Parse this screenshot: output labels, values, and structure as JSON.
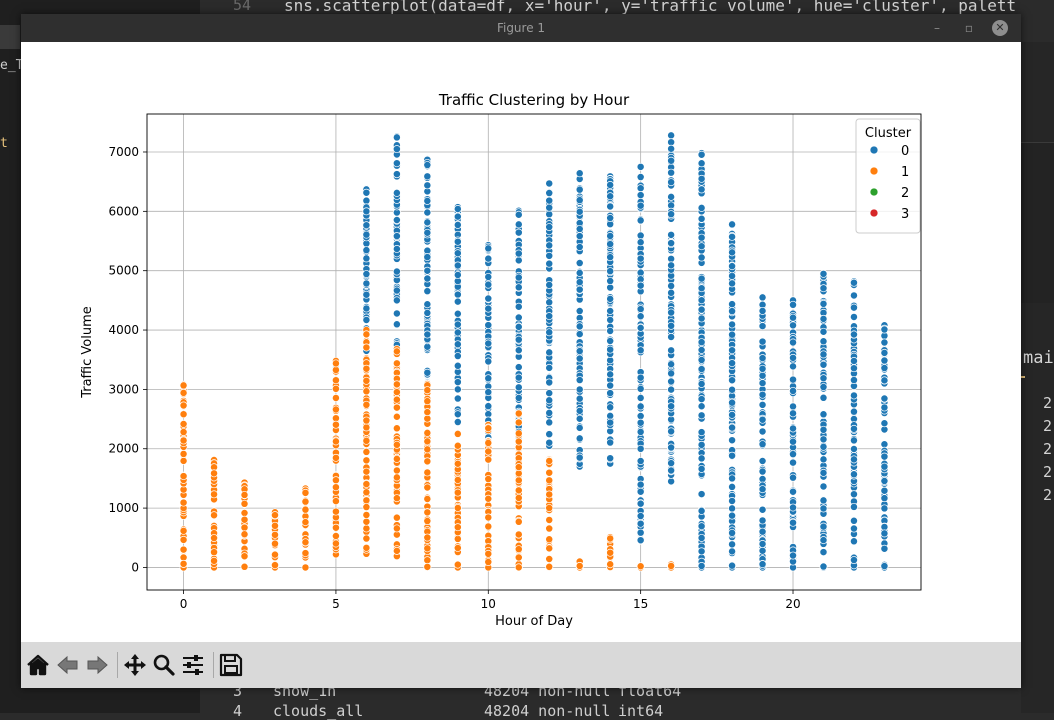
{
  "background": {
    "line_number": "54",
    "code_line": "sns.scatterplot(data=df, x='hour', y='traffic_volume', hue='cluster', palett",
    "sidebar_text_1": "e_T",
    "sidebar_text_2": "t",
    "right_fragment": "mai",
    "right_rows": [
      "2",
      "2",
      "2",
      "2",
      "2"
    ],
    "bottom_rows": [
      {
        "idx": "3",
        "col": "snow_1h",
        "count": "48204 non-null",
        "dtype": "float64"
      },
      {
        "idx": "4",
        "col": "clouds_all",
        "count": "48204 non-null",
        "dtype": "int64"
      }
    ]
  },
  "window": {
    "title": "Figure 1",
    "minimize": "–",
    "maximize": "▫",
    "close": "✕"
  },
  "toolbar": {
    "home": "home-icon",
    "back": "back-arrow-icon",
    "forward": "forward-arrow-icon",
    "pan": "move-icon",
    "zoom": "zoom-icon",
    "configure": "sliders-icon",
    "save": "save-icon"
  },
  "colors": {
    "cluster_0": "#1f77b4",
    "cluster_1": "#ff7f0e",
    "cluster_2": "#2ca02c",
    "cluster_3": "#d62728",
    "grid": "#b0b0b0"
  },
  "chart_data": {
    "type": "scatter",
    "title": "Traffic Clustering by Hour",
    "xlabel": "Hour of Day",
    "ylabel": "Traffic Volume",
    "xlim": [
      -1.2,
      24.2
    ],
    "ylim": [
      -380,
      7640
    ],
    "xticks": [
      0,
      5,
      10,
      15,
      20
    ],
    "yticks": [
      0,
      1000,
      2000,
      3000,
      4000,
      5000,
      6000,
      7000
    ],
    "grid": true,
    "legend": {
      "title": "Cluster",
      "placement": "top-right",
      "entries": [
        "0",
        "1",
        "2",
        "3"
      ]
    },
    "series": [
      {
        "name": "0",
        "ranges": [
          {
            "x": 5,
            "min": 3350,
            "max": 3350
          },
          {
            "x": 6,
            "min": 3650,
            "max": 6380
          },
          {
            "x": 7,
            "min": 3700,
            "max": 7260
          },
          {
            "x": 8,
            "min": 2600,
            "max": 6880
          },
          {
            "x": 9,
            "min": 2450,
            "max": 6070
          },
          {
            "x": 10,
            "min": 1900,
            "max": 5430
          },
          {
            "x": 11,
            "min": 1950,
            "max": 6010
          },
          {
            "x": 12,
            "min": 2050,
            "max": 6470
          },
          {
            "x": 13,
            "min": 1700,
            "max": 6650
          },
          {
            "x": 14,
            "min": 1750,
            "max": 6590
          },
          {
            "x": 15,
            "min": 450,
            "max": 6750
          },
          {
            "x": 16,
            "min": 1450,
            "max": 7280
          },
          {
            "x": 17,
            "min": 0,
            "max": 6980
          },
          {
            "x": 18,
            "min": 0,
            "max": 5780
          },
          {
            "x": 19,
            "min": 0,
            "max": 4550
          },
          {
            "x": 20,
            "min": 0,
            "max": 4500
          },
          {
            "x": 21,
            "min": 0,
            "max": 4950
          },
          {
            "x": 22,
            "min": 0,
            "max": 4820
          },
          {
            "x": 23,
            "min": 0,
            "max": 4080
          }
        ]
      },
      {
        "name": "1",
        "ranges": [
          {
            "x": 0,
            "min": 0,
            "max": 3080
          },
          {
            "x": 1,
            "min": 0,
            "max": 1810
          },
          {
            "x": 2,
            "min": 0,
            "max": 1430
          },
          {
            "x": 3,
            "min": 0,
            "max": 930
          },
          {
            "x": 4,
            "min": 0,
            "max": 1330
          },
          {
            "x": 5,
            "min": 220,
            "max": 3480
          },
          {
            "x": 6,
            "min": 230,
            "max": 4000
          },
          {
            "x": 7,
            "min": 190,
            "max": 3680
          },
          {
            "x": 8,
            "min": 0,
            "max": 3100
          },
          {
            "x": 9,
            "min": 0,
            "max": 2250
          },
          {
            "x": 10,
            "min": 0,
            "max": 2400
          },
          {
            "x": 11,
            "min": 0,
            "max": 2600
          },
          {
            "x": 12,
            "min": 0,
            "max": 1830
          },
          {
            "x": 13,
            "min": 0,
            "max": 100
          },
          {
            "x": 14,
            "min": 0,
            "max": 510
          },
          {
            "x": 15,
            "min": 0,
            "max": 20
          },
          {
            "x": 16,
            "min": 0,
            "max": 50
          }
        ]
      },
      {
        "name": "2",
        "ranges": []
      },
      {
        "name": "3",
        "ranges": []
      }
    ]
  }
}
